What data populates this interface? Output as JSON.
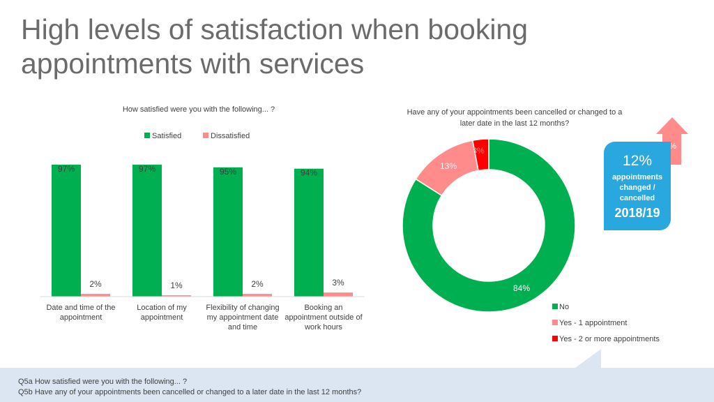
{
  "title": "High levels of satisfaction when booking appointments with services",
  "footer": {
    "q5a": "Q5a How satisfied were you with the following... ?",
    "q5b": "Q5b Have any of your appointments been cancelled or changed to a later date in the last 12 months?"
  },
  "callout": {
    "percent": "12%",
    "text_line1": "appointments",
    "text_line2": "changed /",
    "text_line3": "cancelled",
    "year": "2018/19",
    "arrow_label": "4%"
  },
  "colors": {
    "satisfied": "#00b050",
    "dissatisfied": "#ff8b8b",
    "no": "#00b050",
    "yes1": "#ff8b8b",
    "yes2": "#ff0000",
    "callout": "#29a8e0",
    "arrow": "#ff8b8b"
  },
  "chart_data": [
    {
      "type": "bar",
      "title": "How satisfied were you with the following... ?",
      "categories": [
        [
          "Date and time of the",
          "appointment"
        ],
        [
          "Location of my",
          "appointment"
        ],
        [
          "Flexibility of changing",
          "my appointment date",
          "and time"
        ],
        [
          "Booking an",
          "appointment outside of",
          "work hours"
        ]
      ],
      "series": [
        {
          "name": "Satisfied",
          "values": [
            97,
            97,
            95,
            94
          ],
          "labels": [
            "97%",
            "97%",
            "95%",
            "94%"
          ]
        },
        {
          "name": "Dissatisfied",
          "values": [
            2,
            1,
            2,
            3
          ],
          "labels": [
            "2%",
            "1%",
            "2%",
            "3%"
          ]
        }
      ],
      "ylim": [
        0,
        100
      ],
      "legend": "top"
    },
    {
      "type": "pie",
      "title": "Have any of your appointments been cancelled or changed to a later date in the last 12 months?",
      "title_lines": [
        "Have any of your appointments been cancelled or changed to a",
        "later date in the last 12 months?"
      ],
      "donut": true,
      "slices": [
        {
          "name": "No",
          "value": 84,
          "label": "84%"
        },
        {
          "name": "Yes - 1 appointment",
          "value": 13,
          "label": "13%"
        },
        {
          "name": "Yes - 2 or more appointments",
          "value": 3,
          "label": "3%"
        }
      ],
      "legend": "bottom-right"
    }
  ]
}
